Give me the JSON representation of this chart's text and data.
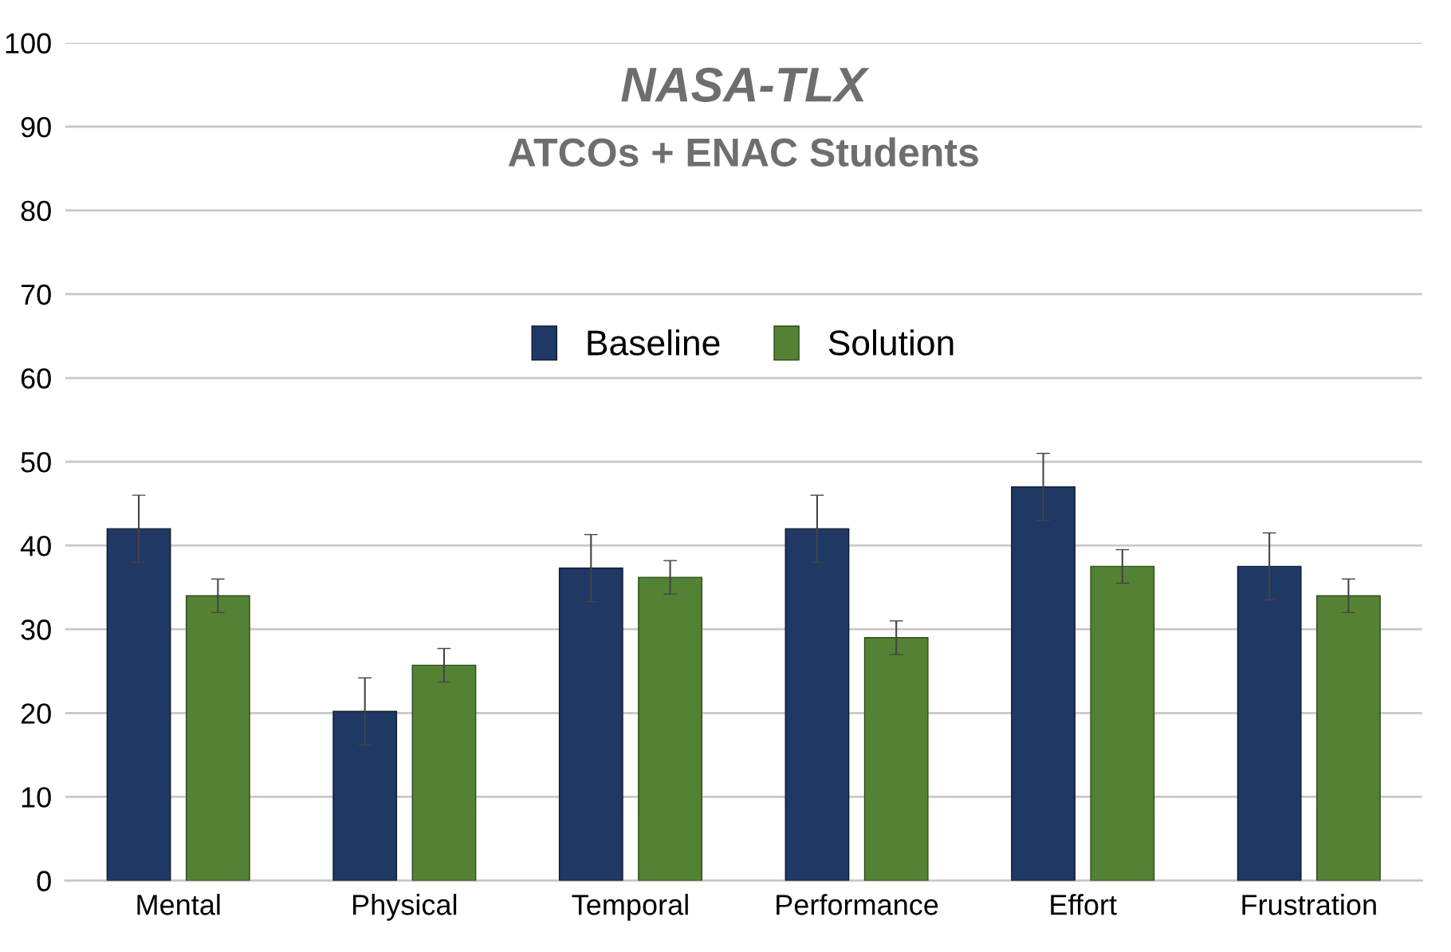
{
  "chart_data": {
    "type": "bar",
    "title": "NASA-TLX",
    "subtitle": "ATCOs + ENAC Students",
    "categories": [
      "Mental",
      "Physical",
      "Temporal",
      "Performance",
      "Effort",
      "Frustration"
    ],
    "series": [
      {
        "name": "Baseline",
        "color": "#1f3864",
        "values": [
          42,
          20.2,
          37.3,
          42,
          47,
          37.5
        ],
        "errors": [
          4,
          4,
          4,
          4,
          4,
          4
        ]
      },
      {
        "name": "Solution",
        "color": "#548235",
        "values": [
          34,
          25.7,
          36.2,
          29,
          37.5,
          34
        ],
        "errors": [
          2,
          2,
          2,
          2,
          2,
          2
        ]
      }
    ],
    "ylim": [
      0,
      100
    ],
    "yticks": [
      0,
      10,
      20,
      30,
      40,
      50,
      60,
      70,
      80,
      90,
      100
    ],
    "grid": "y",
    "legend": "top"
  }
}
